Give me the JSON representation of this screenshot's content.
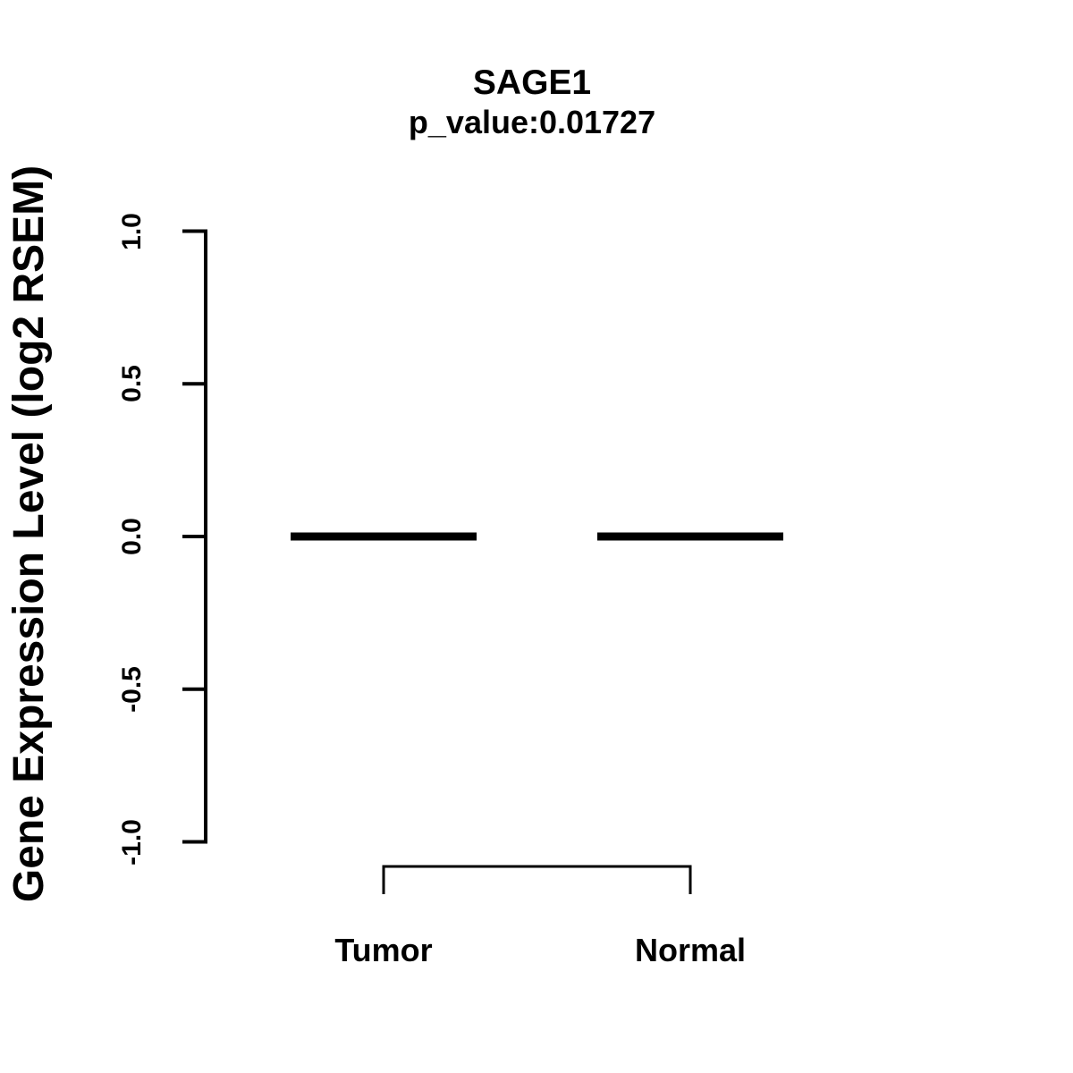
{
  "figure": {
    "background": "#ffffff",
    "ink": "#000000"
  },
  "chart_data": {
    "type": "boxplot",
    "title": "SAGE1",
    "subtitle": "p_value:0.01727",
    "gene": "SAGE1",
    "p_value": 0.01727,
    "ylabel": "Gene Expression Level (log2 RSEM)",
    "categories": [
      "Tumor",
      "Normal"
    ],
    "series": [
      {
        "name": "Tumor",
        "median": 0.0,
        "q1": 0.0,
        "q3": 0.0,
        "whisker_low": 0.0,
        "whisker_high": 0.0
      },
      {
        "name": "Normal",
        "median": 0.0,
        "q1": 0.0,
        "q3": 0.0,
        "whisker_low": 0.0,
        "whisker_high": 0.0
      }
    ],
    "ylim": [
      -1.0,
      1.0
    ],
    "yticks": [
      1.0,
      0.5,
      0.0,
      -0.5,
      -1.0
    ],
    "ytick_labels": [
      "1.0",
      "0.5",
      "0.0",
      "-0.5",
      "-1.0"
    ],
    "grid": false,
    "comparison_bracket": {
      "between": [
        "Tumor",
        "Normal"
      ]
    }
  }
}
